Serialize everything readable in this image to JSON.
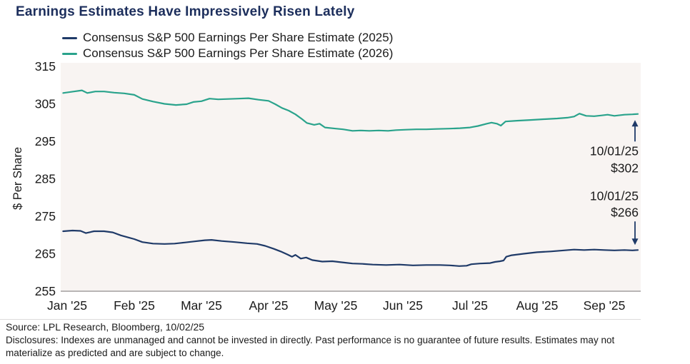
{
  "title": "Earnings Estimates Have Impressively Risen Lately",
  "legend": [
    {
      "label": "Consensus S&P 500 Earnings Per Share Estimate (2025)",
      "color": "#1f3a68"
    },
    {
      "label": "Consensus S&P 500 Earnings Per Share Estimate (2026)",
      "color": "#2aa38c"
    }
  ],
  "colors": {
    "title_navy": "#1c2e5c",
    "line_2025_navy": "#1f3a68",
    "line_2026_teal": "#2aa38c",
    "plot_background": "#f8f4f2",
    "axis_line": "#b8b5b5",
    "annotation_arrow": "#1f3a68",
    "text": "#1a1a1a"
  },
  "chart_data": {
    "type": "line",
    "title": "Earnings Estimates Have Impressively Risen Lately",
    "xlabel": "",
    "ylabel": "$ Per Share",
    "ylim": [
      255,
      315
    ],
    "yticks": [
      255,
      265,
      275,
      285,
      295,
      305,
      315
    ],
    "x_tick_labels": [
      "Jan '25",
      "Feb '25",
      "Mar '25",
      "Apr '25",
      "May '25",
      "Jun '25",
      "Jul '25",
      "Aug '25",
      "Sep '25"
    ],
    "x_unit": "months_after_2025-01-01",
    "grid": false,
    "legend_position": "top-left",
    "series": [
      {
        "name": "Consensus S&P 500 Earnings Per Share Estimate (2025)",
        "color": "#1f3a68",
        "end_date": "10/01/25",
        "end_value": 266,
        "points": [
          [
            -0.06,
            271.0
          ],
          [
            0.08,
            271.2
          ],
          [
            0.2,
            271.1
          ],
          [
            0.28,
            270.5
          ],
          [
            0.4,
            271.0
          ],
          [
            0.55,
            271.0
          ],
          [
            0.68,
            270.7
          ],
          [
            0.8,
            269.9
          ],
          [
            0.92,
            269.3
          ],
          [
            1.0,
            268.9
          ],
          [
            1.12,
            268.1
          ],
          [
            1.28,
            267.7
          ],
          [
            1.45,
            267.6
          ],
          [
            1.6,
            267.7
          ],
          [
            1.75,
            268.0
          ],
          [
            1.9,
            268.3
          ],
          [
            2.05,
            268.6
          ],
          [
            2.15,
            268.7
          ],
          [
            2.3,
            268.4
          ],
          [
            2.5,
            268.1
          ],
          [
            2.68,
            267.8
          ],
          [
            2.83,
            267.6
          ],
          [
            2.95,
            267.1
          ],
          [
            3.08,
            266.3
          ],
          [
            3.18,
            265.6
          ],
          [
            3.28,
            264.8
          ],
          [
            3.35,
            264.2
          ],
          [
            3.4,
            264.7
          ],
          [
            3.48,
            263.7
          ],
          [
            3.56,
            264.0
          ],
          [
            3.65,
            263.3
          ],
          [
            3.8,
            262.9
          ],
          [
            3.95,
            263.0
          ],
          [
            4.1,
            262.7
          ],
          [
            4.25,
            262.4
          ],
          [
            4.4,
            262.3
          ],
          [
            4.55,
            262.1
          ],
          [
            4.75,
            262.0
          ],
          [
            4.95,
            262.1
          ],
          [
            5.15,
            261.9
          ],
          [
            5.35,
            262.0
          ],
          [
            5.55,
            262.0
          ],
          [
            5.7,
            261.9
          ],
          [
            5.84,
            261.7
          ],
          [
            5.95,
            261.8
          ],
          [
            6.02,
            262.2
          ],
          [
            6.15,
            262.4
          ],
          [
            6.3,
            262.5
          ],
          [
            6.37,
            262.8
          ],
          [
            6.45,
            263.0
          ],
          [
            6.5,
            263.2
          ],
          [
            6.54,
            264.2
          ],
          [
            6.62,
            264.6
          ],
          [
            6.8,
            265.0
          ],
          [
            7.0,
            265.4
          ],
          [
            7.2,
            265.6
          ],
          [
            7.4,
            265.9
          ],
          [
            7.55,
            266.1
          ],
          [
            7.7,
            266.0
          ],
          [
            7.85,
            266.1
          ],
          [
            8.0,
            266.0
          ],
          [
            8.15,
            265.9
          ],
          [
            8.3,
            266.0
          ],
          [
            8.42,
            265.9
          ],
          [
            8.5,
            266.0
          ]
        ]
      },
      {
        "name": "Consensus S&P 500 Earnings Per Share Estimate (2026)",
        "color": "#2aa38c",
        "end_date": "10/01/25",
        "end_value": 302,
        "points": [
          [
            -0.06,
            307.9
          ],
          [
            0.1,
            308.3
          ],
          [
            0.22,
            308.6
          ],
          [
            0.3,
            307.9
          ],
          [
            0.42,
            308.3
          ],
          [
            0.55,
            308.3
          ],
          [
            0.7,
            308.0
          ],
          [
            0.85,
            307.8
          ],
          [
            1.0,
            307.4
          ],
          [
            1.12,
            306.3
          ],
          [
            1.28,
            305.6
          ],
          [
            1.45,
            305.0
          ],
          [
            1.62,
            304.7
          ],
          [
            1.78,
            304.9
          ],
          [
            1.88,
            305.5
          ],
          [
            2.0,
            305.7
          ],
          [
            2.12,
            306.4
          ],
          [
            2.25,
            306.2
          ],
          [
            2.4,
            306.3
          ],
          [
            2.55,
            306.4
          ],
          [
            2.7,
            306.5
          ],
          [
            2.85,
            306.1
          ],
          [
            3.0,
            305.8
          ],
          [
            3.1,
            304.9
          ],
          [
            3.2,
            303.9
          ],
          [
            3.3,
            303.2
          ],
          [
            3.4,
            302.2
          ],
          [
            3.5,
            300.9
          ],
          [
            3.57,
            299.9
          ],
          [
            3.68,
            299.4
          ],
          [
            3.76,
            299.7
          ],
          [
            3.84,
            298.7
          ],
          [
            4.0,
            298.4
          ],
          [
            4.11,
            298.2
          ],
          [
            4.25,
            297.8
          ],
          [
            4.37,
            297.9
          ],
          [
            4.5,
            297.8
          ],
          [
            4.64,
            297.9
          ],
          [
            4.78,
            297.8
          ],
          [
            4.9,
            298.0
          ],
          [
            5.05,
            298.1
          ],
          [
            5.2,
            298.2
          ],
          [
            5.35,
            298.2
          ],
          [
            5.5,
            298.3
          ],
          [
            5.7,
            298.4
          ],
          [
            5.85,
            298.5
          ],
          [
            6.0,
            298.7
          ],
          [
            6.12,
            299.1
          ],
          [
            6.25,
            299.7
          ],
          [
            6.32,
            300.0
          ],
          [
            6.4,
            299.7
          ],
          [
            6.46,
            299.2
          ],
          [
            6.53,
            300.3
          ],
          [
            6.7,
            300.5
          ],
          [
            6.9,
            300.7
          ],
          [
            7.1,
            300.9
          ],
          [
            7.3,
            301.1
          ],
          [
            7.45,
            301.3
          ],
          [
            7.55,
            301.6
          ],
          [
            7.63,
            302.4
          ],
          [
            7.73,
            301.8
          ],
          [
            7.85,
            301.7
          ],
          [
            7.95,
            301.9
          ],
          [
            8.05,
            302.1
          ],
          [
            8.15,
            301.8
          ],
          [
            8.3,
            302.1
          ],
          [
            8.42,
            302.2
          ],
          [
            8.5,
            302.3
          ]
        ]
      }
    ],
    "annotations": [
      {
        "date": "10/01/25",
        "value_label": "$302",
        "value": 302,
        "series": "2026",
        "direction": "up"
      },
      {
        "date": "10/01/25",
        "value_label": "$266",
        "value": 266,
        "series": "2025",
        "direction": "down"
      }
    ]
  },
  "source": "Source: LPL Research, Bloomberg, 10/02/25",
  "disclosures": {
    "line1": "Disclosures: Indexes are unmanaged and cannot be invested in directly. Past performance is no guarantee of future results. Estimates may not",
    "line2": "materialize as predicted and are subject to change."
  }
}
